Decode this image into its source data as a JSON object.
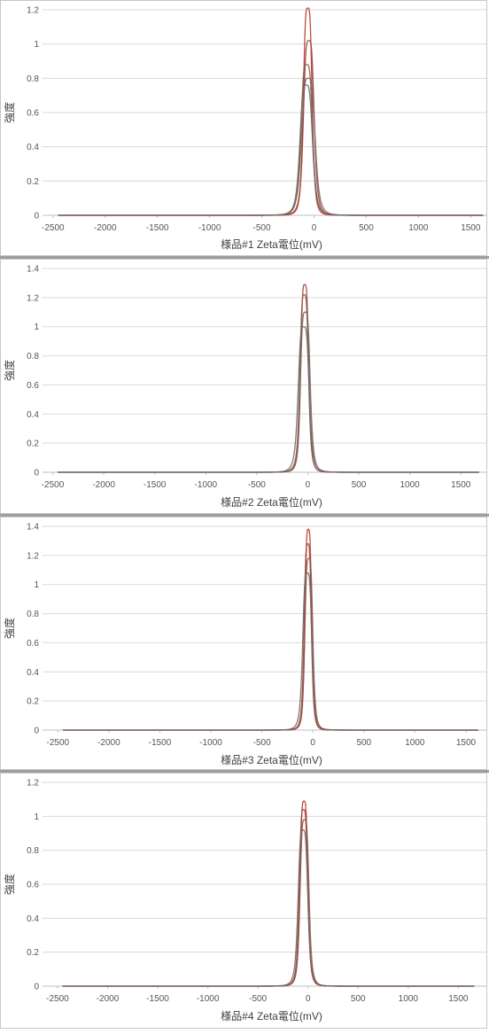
{
  "chart_data": [
    {
      "type": "line",
      "xlabel": "様品#1 Zeta電位(mV)",
      "ylabel": "強度",
      "xlim": [
        -2600,
        1650
      ],
      "ylim": [
        0,
        1.2
      ],
      "x_ticks": [
        -2500,
        -2000,
        -1500,
        -1000,
        -500,
        0,
        500,
        1000,
        1500
      ],
      "x_tick_labels": [
        "-2500",
        "-2000",
        "-1500",
        "-1000",
        "-500",
        "0",
        "500",
        "1000",
        "1500"
      ],
      "y_ticks": [
        0,
        0.2,
        0.4,
        0.6,
        0.8,
        1,
        1.2
      ],
      "y_tick_labels": [
        "0",
        "0.2",
        "0.4",
        "0.6",
        "0.8",
        "1",
        "1.2"
      ],
      "grid": true,
      "x_range": [
        -2450,
        1620
      ],
      "series": [
        {
          "center": -60,
          "peak": 1.21,
          "width": 45,
          "color": "#b23a2a"
        },
        {
          "center": -50,
          "peak": 1.02,
          "width": 55,
          "color": "#a04535"
        },
        {
          "center": -70,
          "peak": 0.88,
          "width": 60,
          "color": "#8c5a50"
        },
        {
          "center": -55,
          "peak": 0.8,
          "width": 70,
          "color": "#7a6660"
        },
        {
          "center": -75,
          "peak": 0.76,
          "width": 65,
          "color": "#6e6a68"
        }
      ]
    },
    {
      "type": "line",
      "xlabel": "様品#2 Zeta電位(mV)",
      "ylabel": "強度",
      "xlim": [
        -2600,
        1750
      ],
      "ylim": [
        0,
        1.4
      ],
      "x_ticks": [
        -2500,
        -2000,
        -1500,
        -1000,
        -500,
        0,
        500,
        1000,
        1500
      ],
      "x_tick_labels": [
        "-2500",
        "-2000",
        "-1500",
        "-1000",
        "-500",
        "0",
        "500",
        "1000",
        "1500"
      ],
      "y_ticks": [
        0,
        0.2,
        0.4,
        0.6,
        0.8,
        1,
        1.2,
        1.4
      ],
      "y_tick_labels": [
        "0",
        "0.2",
        "0.4",
        "0.6",
        "0.8",
        "1",
        "1.2",
        "1.4"
      ],
      "grid": true,
      "x_range": [
        -2450,
        1680
      ],
      "series": [
        {
          "center": -30,
          "peak": 1.29,
          "width": 42,
          "color": "#a04535"
        },
        {
          "center": -35,
          "peak": 1.22,
          "width": 45,
          "color": "#8c5a50"
        },
        {
          "center": -25,
          "peak": 1.1,
          "width": 52,
          "color": "#7a6660"
        },
        {
          "center": -40,
          "peak": 1.0,
          "width": 58,
          "color": "#6e6a68"
        }
      ]
    },
    {
      "type": "line",
      "xlabel": "様品#3 Zeta電位(mV)",
      "ylabel": "強度",
      "xlim": [
        -2650,
        1700
      ],
      "ylim": [
        0,
        1.4
      ],
      "x_ticks": [
        -2500,
        -2000,
        -1500,
        -1000,
        -500,
        0,
        500,
        1000,
        1500
      ],
      "x_tick_labels": [
        "-2500",
        "-2000",
        "-1500",
        "-1000",
        "-500",
        "0",
        "500",
        "1000",
        "1500"
      ],
      "y_ticks": [
        0,
        0.2,
        0.4,
        0.6,
        0.8,
        1,
        1.2,
        1.4
      ],
      "y_tick_labels": [
        "0",
        "0.2",
        "0.4",
        "0.6",
        "0.8",
        "1",
        "1.2",
        "1.4"
      ],
      "grid": true,
      "x_range": [
        -2450,
        1620
      ],
      "series": [
        {
          "center": -45,
          "peak": 1.38,
          "width": 35,
          "color": "#b23a2a"
        },
        {
          "center": -50,
          "peak": 1.28,
          "width": 38,
          "color": "#a04535"
        },
        {
          "center": -40,
          "peak": 1.18,
          "width": 42,
          "color": "#8c5a50"
        },
        {
          "center": -55,
          "peak": 1.08,
          "width": 48,
          "color": "#6e6a68"
        }
      ]
    },
    {
      "type": "line",
      "xlabel": "様品#4 Zeta電位(mV)",
      "ylabel": "強度",
      "xlim": [
        -2650,
        1780
      ],
      "ylim": [
        0,
        1.2
      ],
      "x_ticks": [
        -2500,
        -2000,
        -1500,
        -1000,
        -500,
        0,
        500,
        1000,
        1500
      ],
      "x_tick_labels": [
        "-2500",
        "-2000",
        "-1500",
        "-1000",
        "-500",
        "0",
        "500",
        "1000",
        "1500"
      ],
      "y_ticks": [
        0,
        0.2,
        0.4,
        0.6,
        0.8,
        1,
        1.2
      ],
      "y_tick_labels": [
        "0",
        "0.2",
        "0.4",
        "0.6",
        "0.8",
        "1",
        "1.2"
      ],
      "grid": true,
      "x_range": [
        -2450,
        1660
      ],
      "series": [
        {
          "center": -40,
          "peak": 1.09,
          "width": 42,
          "color": "#b23a2a"
        },
        {
          "center": -45,
          "peak": 1.04,
          "width": 45,
          "color": "#a04535"
        },
        {
          "center": -35,
          "peak": 0.98,
          "width": 48,
          "color": "#8c5a50"
        },
        {
          "center": -50,
          "peak": 0.92,
          "width": 52,
          "color": "#6e6a68"
        }
      ]
    }
  ]
}
